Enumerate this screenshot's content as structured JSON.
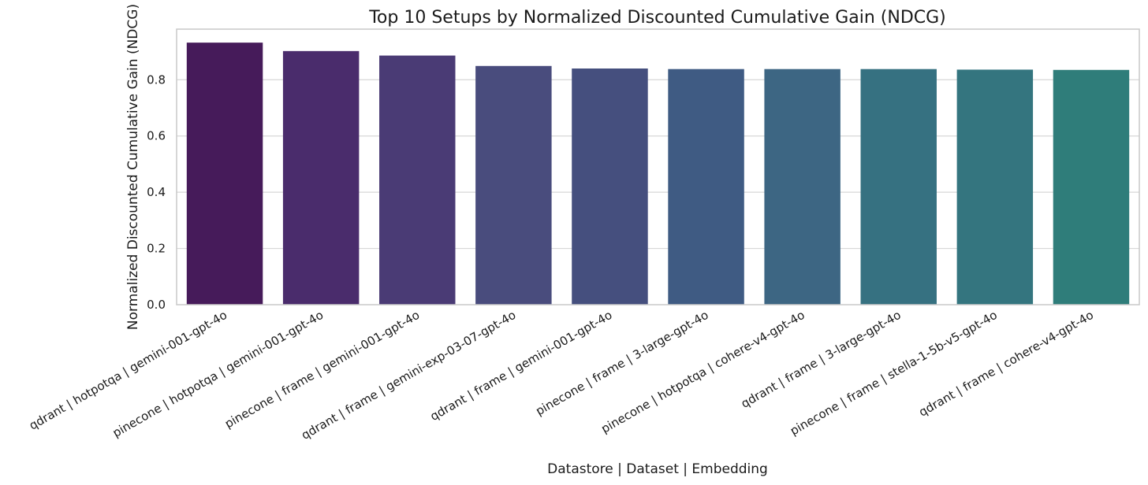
{
  "chart_data": {
    "type": "bar",
    "title": "Top 10 Setups by Normalized Discounted Cumulative Gain (NDCG)",
    "xlabel": "Datastore | Dataset | Embedding",
    "ylabel": "Normalized Discounted Cumulative Gain (NDCG)",
    "ylim": [
      0,
      0.98
    ],
    "yticks": [
      "0.0",
      "0.2",
      "0.4",
      "0.6",
      "0.8"
    ],
    "grid": true,
    "categories": [
      "qdrant | hotpotqa | gemini-001-gpt-4o",
      "pinecone | hotpotqa | gemini-001-gpt-4o",
      "pinecone | frame | gemini-001-gpt-4o",
      "qdrant | frame | gemini-exp-03-07-gpt-4o",
      "qdrant | frame | gemini-001-gpt-4o",
      "pinecone | frame | 3-large-gpt-4o",
      "pinecone | hotpotqa | cohere-v4-gpt-4o",
      "qdrant | frame | 3-large-gpt-4o",
      "pinecone | frame | stella-1-5b-v5-gpt-4o",
      "qdrant | frame | cohere-v4-gpt-4o"
    ],
    "values": [
      0.932,
      0.902,
      0.886,
      0.849,
      0.84,
      0.838,
      0.838,
      0.838,
      0.836,
      0.835
    ],
    "colors": [
      "#461b5a",
      "#4a2c6c",
      "#4a3b75",
      "#494c7d",
      "#454f7e",
      "#3f5b83",
      "#3d6683",
      "#367181",
      "#34757f",
      "#2f7d7a"
    ]
  }
}
